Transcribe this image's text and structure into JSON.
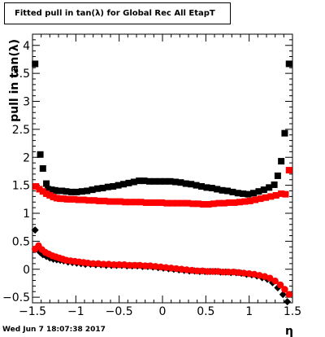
{
  "title": "Fitted pull in tan(λ) for Global Rec All EtapT",
  "timestamp": "Wed Jun  7 18:07:38 2017",
  "chart_data": {
    "type": "scatter",
    "title": "Fitted pull in tan(λ) for Global Rec All EtapT",
    "xlabel": "η",
    "ylabel": "pull in tan(λ)",
    "xlim": [
      -1.5,
      1.5
    ],
    "ylim": [
      -0.6,
      4.2
    ],
    "x_ticks": [
      -1.5,
      -1,
      -0.5,
      0,
      0.5,
      1,
      1.5
    ],
    "x_tick_labels": [
      "−1.5",
      "−1",
      "−0.5",
      "0",
      "0.5",
      "1",
      "1.5"
    ],
    "y_ticks": [
      -0.5,
      0,
      0.5,
      1,
      1.5,
      2,
      2.5,
      3,
      3.5,
      4
    ],
    "y_tick_labels": [
      "−0.5",
      "0",
      "0.5",
      "1",
      "1.5",
      "2",
      "2.5",
      "3",
      "3.5",
      "4"
    ],
    "grid": false,
    "legend": "none",
    "series": [
      {
        "marker": "square",
        "color": "#000000",
        "x": [
          -1.47,
          -1.41,
          -1.38,
          -1.34,
          -1.32,
          -1.28,
          -1.24,
          -1.2,
          -1.16,
          -1.11,
          -1.05,
          -0.99,
          -0.93,
          -0.87,
          -0.81,
          -0.75,
          -0.69,
          -0.63,
          -0.57,
          -0.51,
          -0.45,
          -0.39,
          -0.33,
          -0.27,
          -0.21,
          -0.15,
          -0.09,
          -0.03,
          0.03,
          0.09,
          0.15,
          0.21,
          0.27,
          0.33,
          0.39,
          0.45,
          0.51,
          0.57,
          0.63,
          0.69,
          0.75,
          0.81,
          0.87,
          0.93,
          0.99,
          1.05,
          1.11,
          1.17,
          1.23,
          1.29,
          1.33,
          1.37,
          1.41,
          1.46
        ],
        "y": [
          3.67,
          2.05,
          1.8,
          1.53,
          1.43,
          1.42,
          1.41,
          1.4,
          1.4,
          1.39,
          1.38,
          1.38,
          1.39,
          1.4,
          1.42,
          1.44,
          1.45,
          1.47,
          1.48,
          1.5,
          1.52,
          1.54,
          1.56,
          1.58,
          1.58,
          1.57,
          1.57,
          1.57,
          1.57,
          1.57,
          1.56,
          1.55,
          1.53,
          1.52,
          1.5,
          1.48,
          1.46,
          1.45,
          1.43,
          1.41,
          1.4,
          1.38,
          1.36,
          1.35,
          1.34,
          1.36,
          1.39,
          1.42,
          1.46,
          1.51,
          1.67,
          1.93,
          2.43,
          3.67
        ]
      },
      {
        "marker": "square",
        "color": "#ff0000",
        "x": [
          -1.46,
          -1.42,
          -1.38,
          -1.34,
          -1.3,
          -1.26,
          -1.22,
          -1.18,
          -1.14,
          -1.1,
          -1.06,
          -1.02,
          -0.97,
          -0.91,
          -0.85,
          -0.79,
          -0.73,
          -0.67,
          -0.61,
          -0.55,
          -0.49,
          -0.43,
          -0.37,
          -0.31,
          -0.25,
          -0.19,
          -0.13,
          -0.07,
          -0.01,
          0.05,
          0.11,
          0.17,
          0.23,
          0.29,
          0.35,
          0.41,
          0.47,
          0.53,
          0.59,
          0.65,
          0.71,
          0.77,
          0.83,
          0.89,
          0.95,
          1.01,
          1.07,
          1.13,
          1.19,
          1.25,
          1.31,
          1.37,
          1.42,
          1.46
        ],
        "y": [
          1.48,
          1.43,
          1.39,
          1.35,
          1.32,
          1.29,
          1.27,
          1.26,
          1.26,
          1.25,
          1.25,
          1.25,
          1.24,
          1.24,
          1.23,
          1.23,
          1.22,
          1.22,
          1.21,
          1.21,
          1.21,
          1.2,
          1.2,
          1.2,
          1.2,
          1.19,
          1.19,
          1.19,
          1.19,
          1.18,
          1.18,
          1.18,
          1.18,
          1.18,
          1.17,
          1.17,
          1.16,
          1.16,
          1.17,
          1.18,
          1.18,
          1.19,
          1.19,
          1.2,
          1.21,
          1.22,
          1.24,
          1.26,
          1.28,
          1.3,
          1.32,
          1.35,
          1.34,
          1.77
        ]
      },
      {
        "marker": "diamond",
        "color": "#000000",
        "x": [
          -1.47,
          -1.44,
          -1.41,
          -1.38,
          -1.34,
          -1.3,
          -1.26,
          -1.22,
          -1.18,
          -1.14,
          -1.09,
          -1.04,
          -0.99,
          -0.94,
          -0.89,
          -0.83,
          -0.77,
          -0.71,
          -0.65,
          -0.59,
          -0.53,
          -0.47,
          -0.41,
          -0.35,
          -0.29,
          -0.23,
          -0.17,
          -0.11,
          -0.05,
          0.01,
          0.07,
          0.13,
          0.19,
          0.25,
          0.31,
          0.37,
          0.43,
          0.49,
          0.55,
          0.61,
          0.67,
          0.73,
          0.79,
          0.85,
          0.91,
          0.97,
          1.03,
          1.09,
          1.15,
          1.21,
          1.27,
          1.33,
          1.39,
          1.44
        ],
        "y": [
          0.7,
          0.35,
          0.3,
          0.26,
          0.23,
          0.2,
          0.18,
          0.17,
          0.16,
          0.15,
          0.13,
          0.12,
          0.11,
          0.1,
          0.09,
          0.09,
          0.08,
          0.08,
          0.07,
          0.07,
          0.07,
          0.07,
          0.06,
          0.06,
          0.06,
          0.05,
          0.05,
          0.04,
          0.03,
          0.02,
          0.01,
          0.0,
          -0.01,
          -0.02,
          -0.03,
          -0.03,
          -0.04,
          -0.04,
          -0.04,
          -0.04,
          -0.05,
          -0.05,
          -0.06,
          -0.06,
          -0.07,
          -0.09,
          -0.1,
          -0.12,
          -0.15,
          -0.18,
          -0.24,
          -0.33,
          -0.45,
          -0.58
        ]
      },
      {
        "marker": "circle",
        "color": "#ff0000",
        "x": [
          -1.47,
          -1.43,
          -1.39,
          -1.35,
          -1.31,
          -1.27,
          -1.23,
          -1.19,
          -1.15,
          -1.11,
          -1.06,
          -1.01,
          -0.96,
          -0.91,
          -0.86,
          -0.8,
          -0.74,
          -0.68,
          -0.62,
          -0.56,
          -0.5,
          -0.44,
          -0.38,
          -0.32,
          -0.26,
          -0.2,
          -0.14,
          -0.08,
          -0.02,
          0.04,
          0.1,
          0.16,
          0.22,
          0.28,
          0.34,
          0.4,
          0.46,
          0.52,
          0.58,
          0.64,
          0.7,
          0.76,
          0.82,
          0.88,
          0.94,
          1.0,
          1.06,
          1.12,
          1.18,
          1.24,
          1.3,
          1.36,
          1.41,
          1.46
        ],
        "y": [
          0.36,
          0.42,
          0.35,
          0.3,
          0.27,
          0.24,
          0.22,
          0.2,
          0.18,
          0.16,
          0.15,
          0.14,
          0.13,
          0.12,
          0.11,
          0.1,
          0.1,
          0.09,
          0.09,
          0.08,
          0.08,
          0.08,
          0.07,
          0.07,
          0.07,
          0.06,
          0.06,
          0.05,
          0.04,
          0.03,
          0.02,
          0.01,
          0.0,
          -0.01,
          -0.02,
          -0.03,
          -0.03,
          -0.04,
          -0.04,
          -0.04,
          -0.05,
          -0.05,
          -0.05,
          -0.06,
          -0.07,
          -0.08,
          -0.09,
          -0.11,
          -0.13,
          -0.16,
          -0.21,
          -0.28,
          -0.36,
          -0.45
        ]
      }
    ]
  }
}
